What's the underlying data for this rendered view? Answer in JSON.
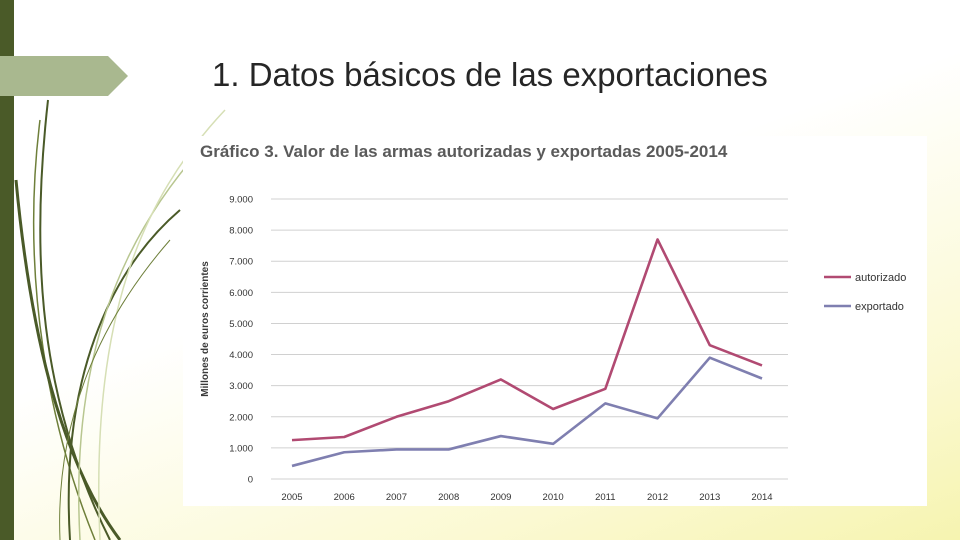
{
  "slide": {
    "title": "1. Datos básicos de las exportaciones"
  },
  "colors": {
    "left_bar": "#4a5a28",
    "title_tab": "#a9b88f",
    "autorizado": "#b14a72",
    "exportado": "#7f7fb0",
    "grid": "#d0d0d0"
  },
  "chart_data": {
    "type": "line",
    "title": "Gráfico 3. Valor de las armas autorizadas y exportadas 2005-2014",
    "xlabel": "",
    "ylabel": "Millones de euros corrientes",
    "categories": [
      "2005",
      "2006",
      "2007",
      "2008",
      "2009",
      "2010",
      "2011",
      "2012",
      "2013",
      "2014"
    ],
    "ylim": [
      0,
      9000
    ],
    "yticks": [
      0,
      1000,
      2000,
      3000,
      4000,
      5000,
      6000,
      7000,
      8000,
      9000
    ],
    "ytick_labels": [
      "0",
      "1.000",
      "2.000",
      "3.000",
      "4.000",
      "5.000",
      "6.000",
      "7.000",
      "8.000",
      "9.000"
    ],
    "grid": true,
    "legend_position": "right",
    "series": [
      {
        "name": "autorizado",
        "values": [
          1250,
          1350,
          2000,
          2500,
          3200,
          2250,
          2900,
          7700,
          4300,
          3650
        ]
      },
      {
        "name": "exportado",
        "values": [
          420,
          860,
          950,
          950,
          1380,
          1130,
          2430,
          1950,
          3900,
          3230
        ]
      }
    ]
  }
}
